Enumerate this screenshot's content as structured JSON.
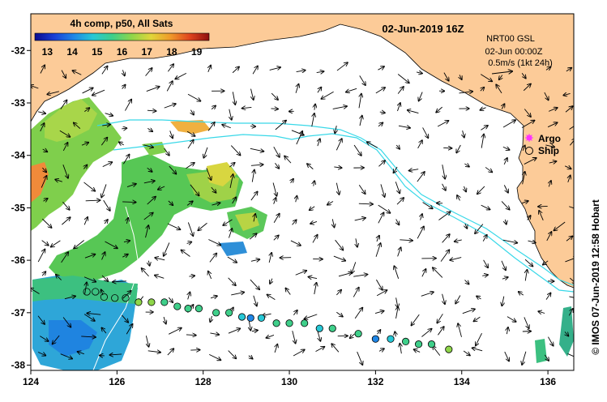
{
  "map": {
    "title": "02-Jun-2019 16Z",
    "colorbar": {
      "label": "4h comp, p50, All Sats",
      "ticks": [
        "13",
        "14",
        "15",
        "16",
        "17",
        "18",
        "19"
      ],
      "min": 12.5,
      "max": 19.5,
      "colors": [
        "#0b0b8f",
        "#1a3fd6",
        "#1f86e6",
        "#27c8d6",
        "#3fcf8a",
        "#8fd64a",
        "#e0d63a",
        "#f09a2a",
        "#e0441e",
        "#8e0f0f"
      ]
    },
    "info": {
      "source": "NRT00 GSL",
      "time": "02-Jun 00:00Z",
      "scale": "0.5m/s (1kt 24h)"
    },
    "legend": {
      "argo": "Argo",
      "ship": "Ship"
    },
    "x_ticks": [
      "124",
      "126",
      "128",
      "130",
      "132",
      "134",
      "136"
    ],
    "y_ticks": [
      "-32",
      "-33",
      "-34",
      "-35",
      "-36",
      "-37",
      "-38"
    ],
    "lon_range": [
      124,
      136.6
    ],
    "lat_range": [
      -38.1,
      -31.3
    ],
    "credit": "© IMOS 07-Jun-2019 12:58 Hobart",
    "colors": {
      "land": "#fccb98",
      "isobath": "#39d8e8",
      "ship_outline": "#000000"
    },
    "ship_track": [
      {
        "lon": 125.3,
        "lat": -36.6,
        "sst": null
      },
      {
        "lon": 125.5,
        "lat": -36.6,
        "sst": null
      },
      {
        "lon": 125.7,
        "lat": -36.7,
        "sst": null
      },
      {
        "lon": 125.95,
        "lat": -36.72,
        "sst": null
      },
      {
        "lon": 126.2,
        "lat": -36.72,
        "sst": null
      },
      {
        "lon": 126.5,
        "lat": -36.8,
        "sst": 16.0
      },
      {
        "lon": 126.8,
        "lat": -36.8,
        "sst": 16.0
      },
      {
        "lon": 127.1,
        "lat": -36.8,
        "sst": 15.9
      },
      {
        "lon": 127.4,
        "lat": -36.88,
        "sst": 15.9
      },
      {
        "lon": 127.65,
        "lat": -36.92,
        "sst": 15.8
      },
      {
        "lon": 127.9,
        "lat": -36.92,
        "sst": 15.8
      },
      {
        "lon": 128.3,
        "lat": -37.0,
        "sst": 15.5
      },
      {
        "lon": 128.6,
        "lat": -37.0,
        "sst": 15.3
      },
      {
        "lon": 128.9,
        "lat": -37.08,
        "sst": 15.0
      },
      {
        "lon": 129.1,
        "lat": -37.1,
        "sst": 14.2
      },
      {
        "lon": 129.35,
        "lat": -37.1,
        "sst": 15.2
      },
      {
        "lon": 129.7,
        "lat": -37.2,
        "sst": 15.8
      },
      {
        "lon": 130.0,
        "lat": -37.2,
        "sst": 15.8
      },
      {
        "lon": 130.35,
        "lat": -37.2,
        "sst": 15.8
      },
      {
        "lon": 130.7,
        "lat": -37.3,
        "sst": 14.6
      },
      {
        "lon": 131.0,
        "lat": -37.3,
        "sst": 15.3
      },
      {
        "lon": 131.6,
        "lat": -37.4,
        "sst": 15.5
      },
      {
        "lon": 132.0,
        "lat": -37.5,
        "sst": 14.2
      },
      {
        "lon": 132.35,
        "lat": -37.5,
        "sst": 15.2
      },
      {
        "lon": 132.7,
        "lat": -37.55,
        "sst": 15.6
      },
      {
        "lon": 133.0,
        "lat": -37.6,
        "sst": 15.6
      },
      {
        "lon": 133.3,
        "lat": -37.6,
        "sst": 15.6
      },
      {
        "lon": 133.7,
        "lat": -37.7,
        "sst": 16.3
      }
    ]
  }
}
